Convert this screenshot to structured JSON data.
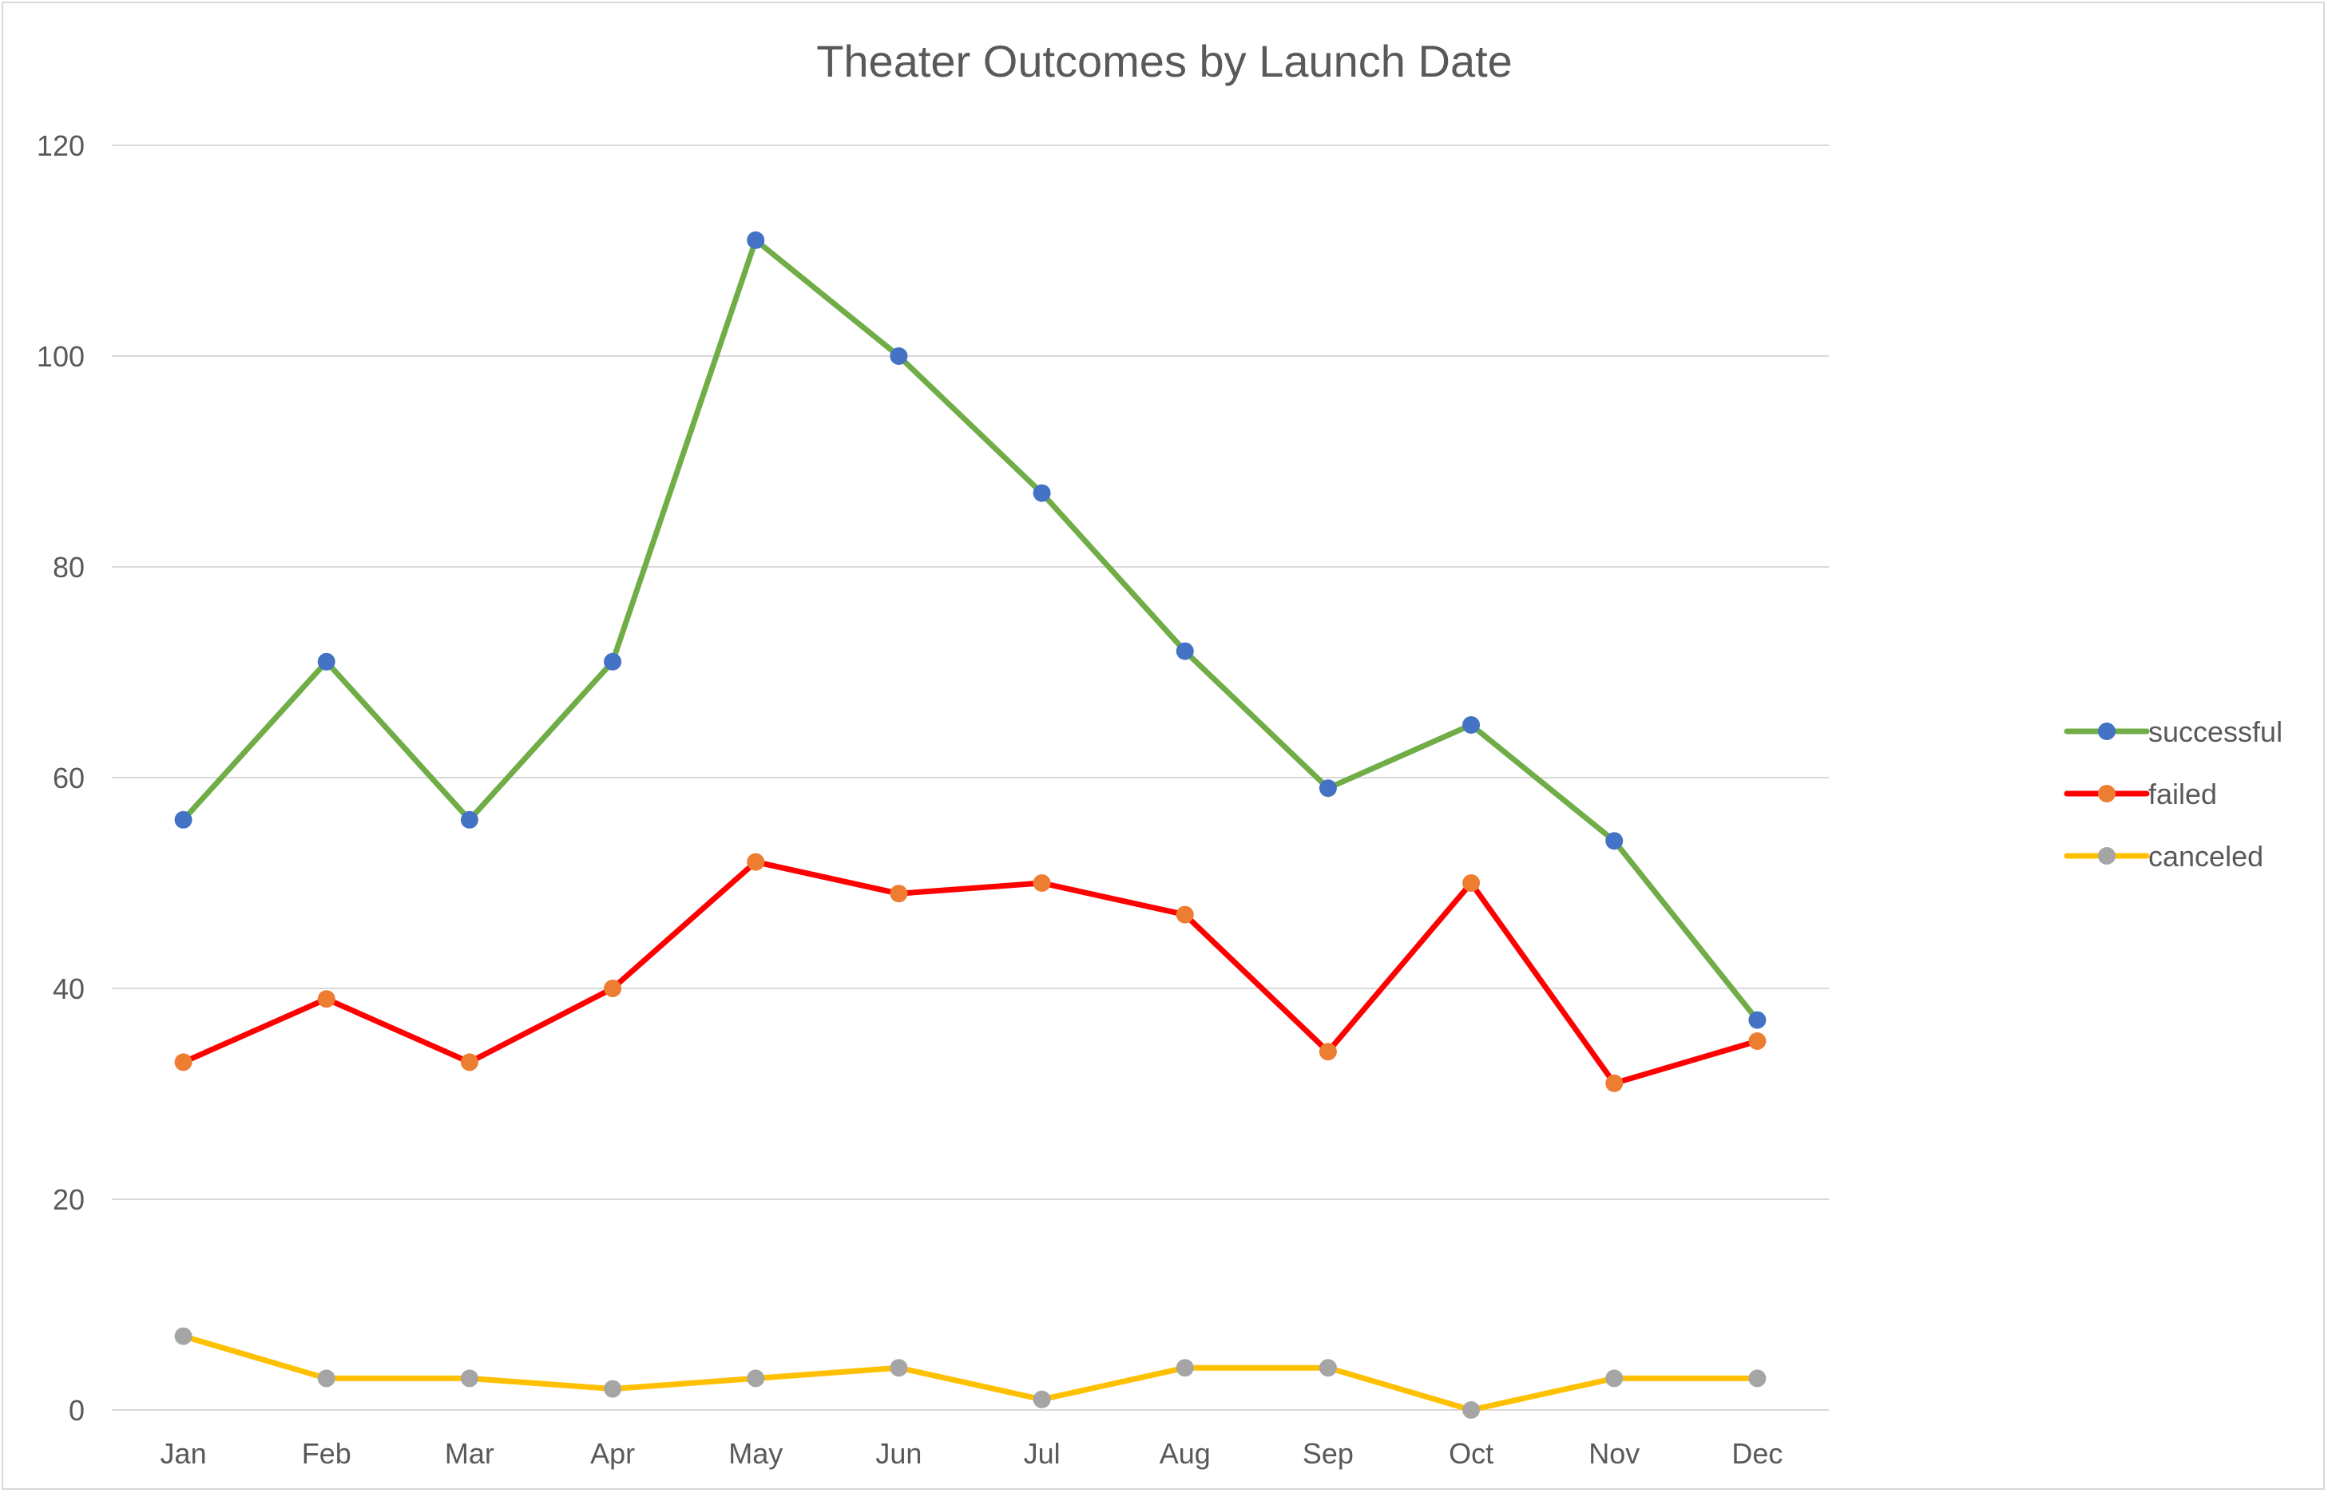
{
  "chart_data": {
    "type": "line",
    "title": "Theater Outcomes by Launch Date",
    "xlabel": "",
    "ylabel": "",
    "categories": [
      "Jan",
      "Feb",
      "Mar",
      "Apr",
      "May",
      "Jun",
      "Jul",
      "Aug",
      "Sep",
      "Oct",
      "Nov",
      "Dec"
    ],
    "ylim": [
      0,
      120
    ],
    "yticks": [
      "0",
      "20",
      "40",
      "60",
      "80",
      "100",
      "120"
    ],
    "grid": true,
    "legend_position": "right",
    "series": [
      {
        "name": "successful",
        "values": [
          56,
          71,
          56,
          71,
          111,
          100,
          87,
          72,
          59,
          65,
          54,
          37
        ],
        "line_color": "#70ad47",
        "marker_color": "#4472c4"
      },
      {
        "name": "failed",
        "values": [
          33,
          39,
          33,
          40,
          52,
          49,
          50,
          47,
          34,
          50,
          31,
          35
        ],
        "line_color": "#ff0000",
        "marker_color": "#ed7d31"
      },
      {
        "name": "canceled",
        "values": [
          7,
          3,
          3,
          2,
          3,
          4,
          1,
          4,
          4,
          0,
          3,
          3
        ],
        "line_color": "#ffc000",
        "marker_color": "#a5a5a5"
      }
    ]
  }
}
